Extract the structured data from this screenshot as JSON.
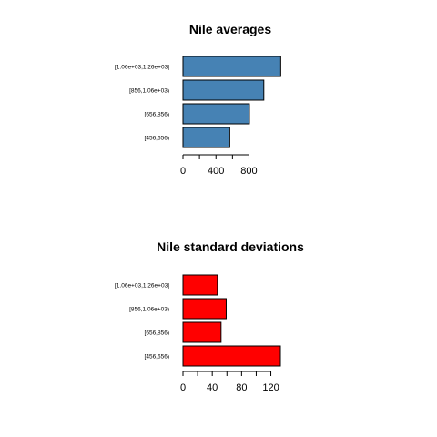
{
  "chart_data": [
    {
      "type": "bar",
      "orientation": "horizontal",
      "title": "Nile averages",
      "categories": [
        "[456,656)",
        "[656,856)",
        "[856,1.06e+03)",
        "[1.06e+03,1.26e+03]"
      ],
      "values": [
        567,
        805,
        980,
        1185
      ],
      "xticks": [
        0,
        400,
        800
      ],
      "color": "#4682B4"
    },
    {
      "type": "bar",
      "orientation": "horizontal",
      "title": "Nile standard deviations",
      "categories": [
        "[456,656)",
        "[656,856)",
        "[856,1.06e+03)",
        "[1.06e+03,1.26e+03]"
      ],
      "values": [
        133,
        52,
        59,
        47
      ],
      "xticks": [
        0,
        40,
        80,
        120
      ],
      "color": "#FF0000"
    }
  ]
}
